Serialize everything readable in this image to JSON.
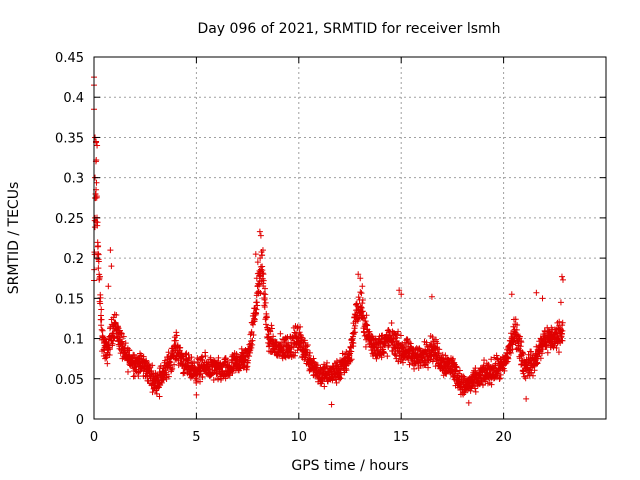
{
  "chart_data": {
    "type": "scatter",
    "title": "Day 096 of 2021, SRMTID for receiver lsmh",
    "xlabel": "GPS time / hours",
    "ylabel": "SRMTID / TECUs",
    "xlim": [
      0,
      25
    ],
    "ylim": [
      0,
      0.45
    ],
    "xticks": [
      0,
      5,
      10,
      15,
      20
    ],
    "yticks": [
      0,
      0.05,
      0.1,
      0.15,
      0.2,
      0.25,
      0.3,
      0.35,
      0.4,
      0.45
    ],
    "xtick_labels": [
      "0",
      "5",
      "10",
      "15",
      "20"
    ],
    "ytick_labels": [
      "0",
      "0.05",
      "0.1",
      "0.15",
      "0.2",
      "0.25",
      "0.3",
      "0.35",
      "0.4",
      "0.45"
    ],
    "grid": true,
    "marker": "+",
    "color": "#e00000",
    "series": [
      {
        "name": "SRMTID",
        "profile": {
          "x": [
            0.0,
            0.1,
            0.2,
            0.4,
            0.6,
            0.8,
            1.0,
            1.5,
            2.0,
            2.5,
            3.0,
            3.5,
            4.0,
            4.5,
            5.0,
            5.5,
            6.0,
            6.5,
            7.0,
            7.5,
            7.8,
            8.0,
            8.2,
            8.5,
            9.0,
            9.5,
            10.0,
            10.5,
            11.0,
            11.5,
            12.0,
            12.5,
            12.8,
            13.0,
            13.3,
            13.6,
            14.0,
            14.5,
            15.0,
            15.5,
            16.0,
            16.5,
            17.0,
            17.5,
            18.0,
            18.5,
            19.0,
            19.5,
            20.0,
            20.3,
            20.6,
            21.0,
            21.5,
            22.0,
            22.5,
            22.9
          ],
          "y": [
            0.16,
            0.33,
            0.2,
            0.1,
            0.08,
            0.1,
            0.12,
            0.08,
            0.07,
            0.065,
            0.045,
            0.06,
            0.09,
            0.065,
            0.06,
            0.065,
            0.06,
            0.06,
            0.07,
            0.075,
            0.12,
            0.16,
            0.19,
            0.1,
            0.085,
            0.09,
            0.1,
            0.075,
            0.055,
            0.055,
            0.06,
            0.08,
            0.13,
            0.14,
            0.11,
            0.09,
            0.09,
            0.1,
            0.085,
            0.08,
            0.075,
            0.09,
            0.07,
            0.065,
            0.04,
            0.045,
            0.055,
            0.06,
            0.065,
            0.09,
            0.11,
            0.065,
            0.07,
            0.1,
            0.1,
            0.11
          ]
        },
        "spread": 0.025,
        "count": 2300,
        "extreme_points": [
          {
            "x": 0.0,
            "y": 0.425
          },
          {
            "x": 0.0,
            "y": 0.415
          },
          {
            "x": 0.0,
            "y": 0.385
          },
          {
            "x": 0.05,
            "y": 0.35
          },
          {
            "x": 0.1,
            "y": 0.345
          },
          {
            "x": 0.15,
            "y": 0.34
          },
          {
            "x": 0.05,
            "y": 0.3
          },
          {
            "x": 0.1,
            "y": 0.285
          },
          {
            "x": 0.05,
            "y": 0.25
          },
          {
            "x": 0.1,
            "y": 0.245
          },
          {
            "x": 0.2,
            "y": 0.215
          },
          {
            "x": 0.15,
            "y": 0.2
          },
          {
            "x": 0.8,
            "y": 0.21
          },
          {
            "x": 0.85,
            "y": 0.19
          },
          {
            "x": 0.7,
            "y": 0.165
          },
          {
            "x": 8.1,
            "y": 0.233
          },
          {
            "x": 8.15,
            "y": 0.228
          },
          {
            "x": 7.9,
            "y": 0.205
          },
          {
            "x": 8.0,
            "y": 0.195
          },
          {
            "x": 8.25,
            "y": 0.21
          },
          {
            "x": 7.95,
            "y": 0.175
          },
          {
            "x": 12.9,
            "y": 0.18
          },
          {
            "x": 13.0,
            "y": 0.175
          },
          {
            "x": 13.1,
            "y": 0.165
          },
          {
            "x": 14.9,
            "y": 0.16
          },
          {
            "x": 15.0,
            "y": 0.155
          },
          {
            "x": 16.5,
            "y": 0.152
          },
          {
            "x": 20.4,
            "y": 0.155
          },
          {
            "x": 21.6,
            "y": 0.157
          },
          {
            "x": 21.9,
            "y": 0.15
          },
          {
            "x": 22.85,
            "y": 0.177
          },
          {
            "x": 22.9,
            "y": 0.173
          },
          {
            "x": 22.8,
            "y": 0.145
          },
          {
            "x": 18.3,
            "y": 0.02
          },
          {
            "x": 11.6,
            "y": 0.018
          },
          {
            "x": 21.1,
            "y": 0.025
          },
          {
            "x": 3.2,
            "y": 0.028
          },
          {
            "x": 5.0,
            "y": 0.03
          }
        ]
      }
    ]
  }
}
